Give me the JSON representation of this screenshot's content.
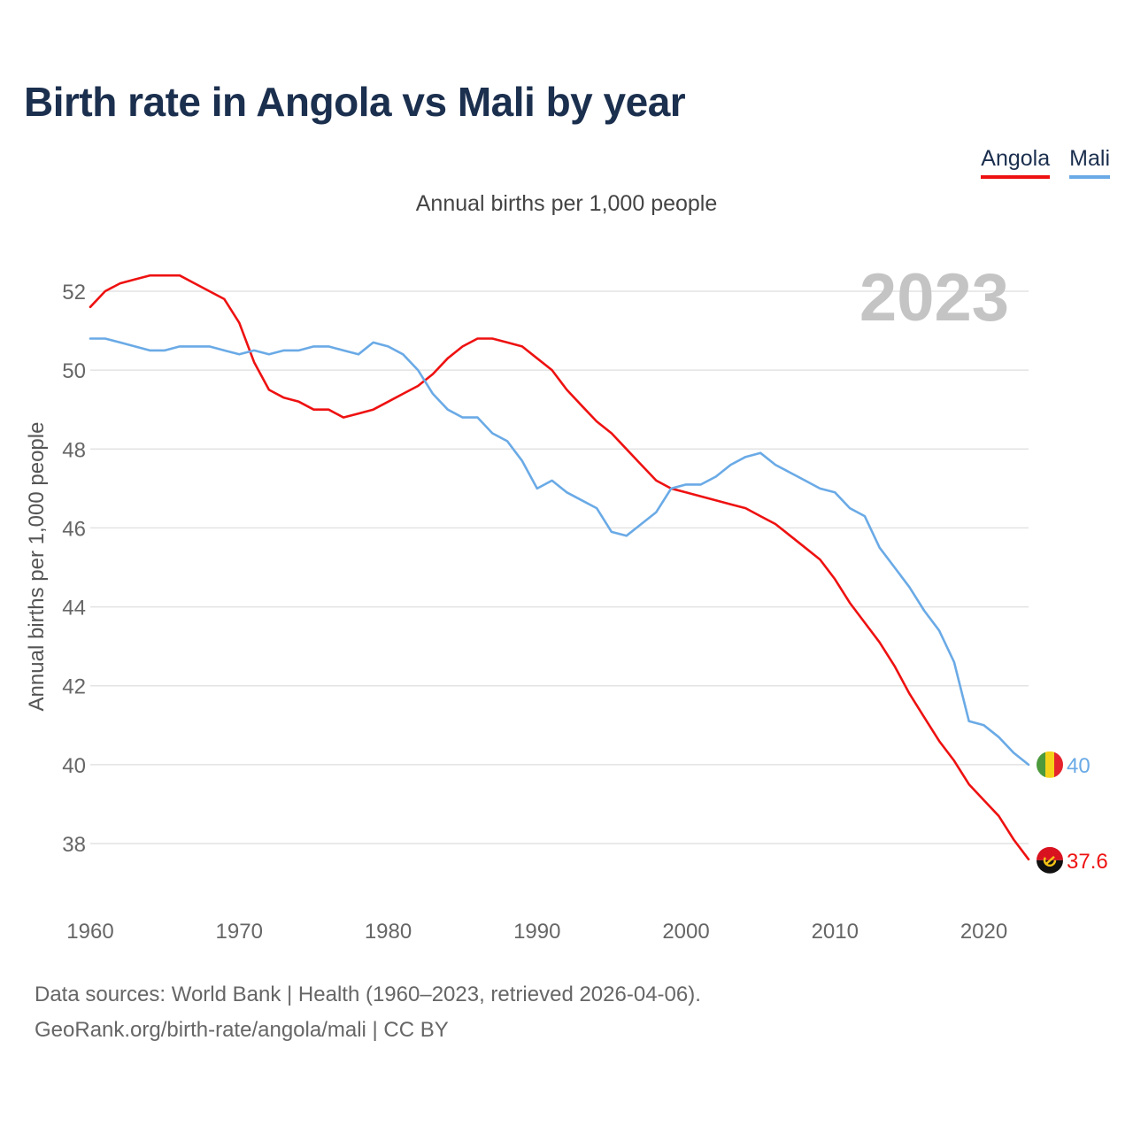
{
  "title": "Birth rate in Angola vs Mali by year",
  "subtitle": "Annual births per 1,000 people",
  "legend": [
    {
      "label": "Angola",
      "color": "#ee1111"
    },
    {
      "label": "Mali",
      "color": "#6aaae6"
    }
  ],
  "year_label": "2023",
  "footer": {
    "line1": "Data sources: World Bank | Health (1960–2023, retrieved 2026-04-06).",
    "line2": "GeoRank.org/birth-rate/angola/mali | CC BY"
  },
  "chart_data": {
    "type": "line",
    "title": "Birth rate in Angola vs Mali by year",
    "subtitle": "Annual births per 1,000 people",
    "xlabel": "",
    "ylabel": "Annual births per 1,000 people",
    "xlim": [
      1960,
      2023
    ],
    "ylim": [
      37,
      53
    ],
    "x_ticks": [
      1960,
      1970,
      1980,
      1990,
      2000,
      2010,
      2020
    ],
    "y_ticks": [
      38,
      40,
      42,
      44,
      46,
      48,
      50,
      52
    ],
    "grid": true,
    "legend_position": "top-right",
    "x": [
      1960,
      1961,
      1962,
      1963,
      1964,
      1965,
      1966,
      1967,
      1968,
      1969,
      1970,
      1971,
      1972,
      1973,
      1974,
      1975,
      1976,
      1977,
      1978,
      1979,
      1980,
      1981,
      1982,
      1983,
      1984,
      1985,
      1986,
      1987,
      1988,
      1989,
      1990,
      1991,
      1992,
      1993,
      1994,
      1995,
      1996,
      1997,
      1998,
      1999,
      2000,
      2001,
      2002,
      2003,
      2004,
      2005,
      2006,
      2007,
      2008,
      2009,
      2010,
      2011,
      2012,
      2013,
      2014,
      2015,
      2016,
      2017,
      2018,
      2019,
      2020,
      2021,
      2022,
      2023
    ],
    "series": [
      {
        "name": "Angola",
        "color": "#ee1111",
        "end_label": "37.6",
        "values": [
          51.6,
          52.0,
          52.2,
          52.3,
          52.4,
          52.4,
          52.4,
          52.2,
          52.0,
          51.8,
          51.2,
          50.2,
          49.5,
          49.3,
          49.2,
          49.0,
          49.0,
          48.8,
          48.9,
          49.0,
          49.2,
          49.4,
          49.6,
          49.9,
          50.3,
          50.6,
          50.8,
          50.8,
          50.7,
          50.6,
          50.3,
          50.0,
          49.5,
          49.1,
          48.7,
          48.4,
          48.0,
          47.6,
          47.2,
          47.0,
          46.9,
          46.8,
          46.7,
          46.6,
          46.5,
          46.3,
          46.1,
          45.8,
          45.5,
          45.2,
          44.7,
          44.1,
          43.6,
          43.1,
          42.5,
          41.8,
          41.2,
          40.6,
          40.1,
          39.5,
          39.1,
          38.7,
          38.1,
          37.6
        ]
      },
      {
        "name": "Mali",
        "color": "#6aaae6",
        "end_label": "40",
        "values": [
          50.8,
          50.8,
          50.7,
          50.6,
          50.5,
          50.5,
          50.6,
          50.6,
          50.6,
          50.5,
          50.4,
          50.5,
          50.4,
          50.5,
          50.5,
          50.6,
          50.6,
          50.5,
          50.4,
          50.7,
          50.6,
          50.4,
          50.0,
          49.4,
          49.0,
          48.8,
          48.8,
          48.4,
          48.2,
          47.7,
          47.0,
          47.2,
          46.9,
          46.7,
          46.5,
          45.9,
          45.8,
          46.1,
          46.4,
          47.0,
          47.1,
          47.1,
          47.3,
          47.6,
          47.8,
          47.9,
          47.6,
          47.4,
          47.2,
          47.0,
          46.9,
          46.5,
          46.3,
          45.5,
          45.0,
          44.5,
          43.9,
          43.4,
          42.6,
          41.1,
          41.0,
          40.7,
          40.3,
          40.0
        ]
      }
    ]
  }
}
